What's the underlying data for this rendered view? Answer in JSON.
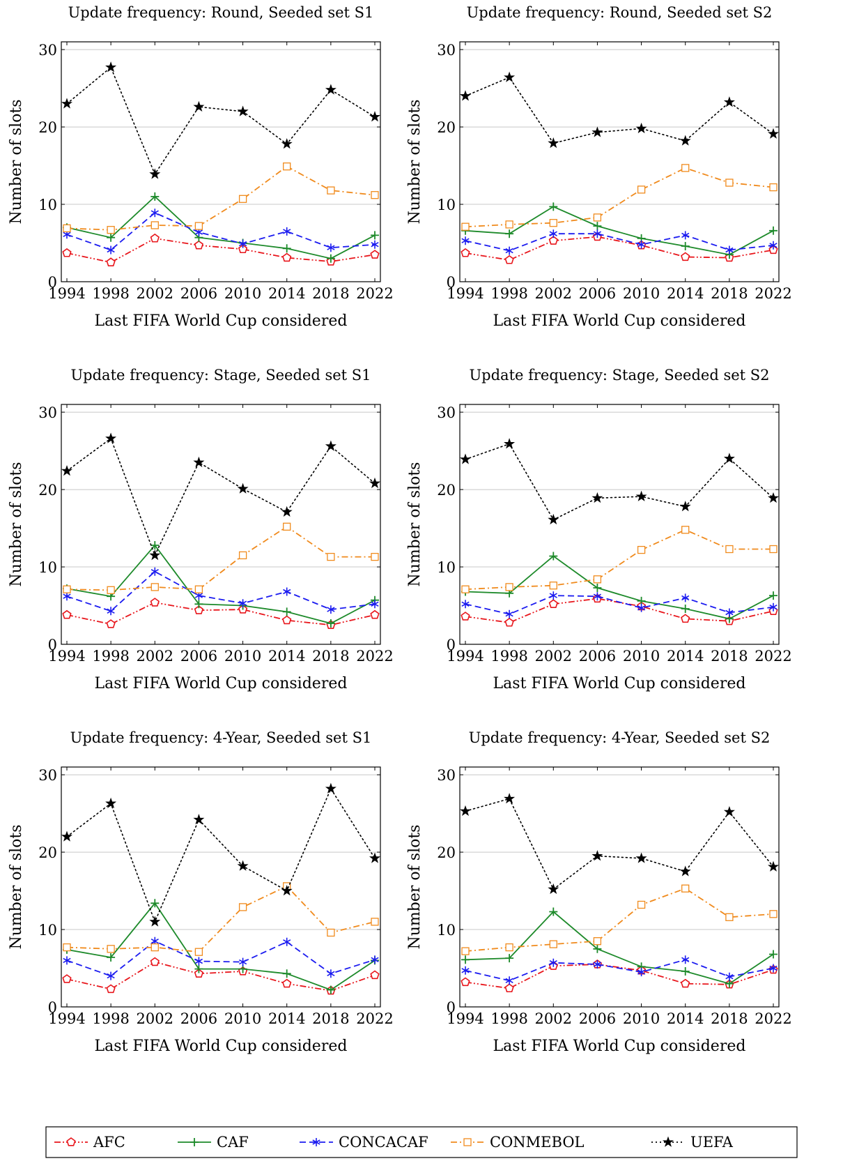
{
  "legend": [
    {
      "name": "AFC",
      "color": "#e8151b",
      "marker": "pentagon",
      "dash": "dashdotdot"
    },
    {
      "name": "CAF",
      "color": "#1d8a2a",
      "marker": "plus",
      "dash": "solid"
    },
    {
      "name": "CONCACAF",
      "color": "#1b1bf0",
      "marker": "asterisk",
      "dash": "dashed"
    },
    {
      "name": "CONMEBOL",
      "color": "#f08a1c",
      "marker": "square",
      "dash": "dashdot"
    },
    {
      "name": "UEFA",
      "color": "#000000",
      "marker": "star",
      "dash": "dotted"
    }
  ],
  "chart_data": [
    {
      "type": "line",
      "title": "Update frequency: Round, Seeded set S1",
      "xlabel": "Last FIFA World Cup considered",
      "ylabel": "Number of slots",
      "x": [
        1994,
        1998,
        2002,
        2006,
        2010,
        2014,
        2018,
        2022
      ],
      "ylim": [
        0,
        31
      ],
      "yticks": [
        0,
        10,
        20,
        30
      ],
      "grid": "horizontal",
      "series": [
        {
          "name": "AFC",
          "values": [
            3.7,
            2.5,
            5.6,
            4.7,
            4.2,
            3.1,
            2.6,
            3.5
          ]
        },
        {
          "name": "CAF",
          "values": [
            7.0,
            5.7,
            11.0,
            5.7,
            5.0,
            4.3,
            3.0,
            6.0
          ]
        },
        {
          "name": "CONCACAF",
          "values": [
            6.1,
            4.1,
            8.9,
            6.4,
            4.9,
            6.5,
            4.4,
            4.8
          ]
        },
        {
          "name": "CONMEBOL",
          "values": [
            6.9,
            6.7,
            7.3,
            7.2,
            10.7,
            14.9,
            11.8,
            11.2
          ]
        },
        {
          "name": "UEFA",
          "values": [
            23.0,
            27.7,
            13.9,
            22.6,
            22.0,
            17.8,
            24.8,
            21.3
          ]
        }
      ]
    },
    {
      "type": "line",
      "title": "Update frequency: Round, Seeded set S2",
      "xlabel": "Last FIFA World Cup considered",
      "ylabel": "Number of slots",
      "x": [
        1994,
        1998,
        2002,
        2006,
        2010,
        2014,
        2018,
        2022
      ],
      "ylim": [
        0,
        31
      ],
      "yticks": [
        0,
        10,
        20,
        30
      ],
      "grid": "horizontal",
      "series": [
        {
          "name": "AFC",
          "values": [
            3.7,
            2.8,
            5.3,
            5.8,
            4.7,
            3.2,
            3.1,
            4.1
          ]
        },
        {
          "name": "CAF",
          "values": [
            6.6,
            6.2,
            9.7,
            7.2,
            5.6,
            4.6,
            3.5,
            6.6
          ]
        },
        {
          "name": "CONCACAF",
          "values": [
            5.3,
            4.0,
            6.2,
            6.2,
            4.8,
            6.0,
            4.1,
            4.7
          ]
        },
        {
          "name": "CONMEBOL",
          "values": [
            7.1,
            7.4,
            7.6,
            8.3,
            11.9,
            14.7,
            12.8,
            12.2
          ]
        },
        {
          "name": "UEFA",
          "values": [
            24.0,
            26.4,
            17.9,
            19.3,
            19.8,
            18.2,
            23.2,
            19.1
          ]
        }
      ]
    },
    {
      "type": "line",
      "title": "Update frequency: Stage, Seeded set S1",
      "xlabel": "Last FIFA World Cup considered",
      "ylabel": "Number of slots",
      "x": [
        1994,
        1998,
        2002,
        2006,
        2010,
        2014,
        2018,
        2022
      ],
      "ylim": [
        0,
        31
      ],
      "yticks": [
        0,
        10,
        20,
        30
      ],
      "grid": "horizontal",
      "series": [
        {
          "name": "AFC",
          "values": [
            3.8,
            2.6,
            5.4,
            4.4,
            4.5,
            3.1,
            2.5,
            3.8
          ]
        },
        {
          "name": "CAF",
          "values": [
            7.2,
            6.2,
            12.8,
            5.2,
            5.0,
            4.2,
            2.7,
            5.7
          ]
        },
        {
          "name": "CONCACAF",
          "values": [
            6.2,
            4.3,
            9.4,
            6.3,
            5.3,
            6.8,
            4.5,
            5.2
          ]
        },
        {
          "name": "CONMEBOL",
          "values": [
            7.1,
            7.0,
            7.4,
            7.1,
            11.5,
            15.2,
            11.3,
            11.3
          ]
        },
        {
          "name": "UEFA",
          "values": [
            22.4,
            26.6,
            11.5,
            23.5,
            20.1,
            17.1,
            25.6,
            20.8
          ]
        }
      ]
    },
    {
      "type": "line",
      "title": "Update frequency: Stage, Seeded set S2",
      "xlabel": "Last FIFA World Cup considered",
      "ylabel": "Number of slots",
      "x": [
        1994,
        1998,
        2002,
        2006,
        2010,
        2014,
        2018,
        2022
      ],
      "ylim": [
        0,
        31
      ],
      "yticks": [
        0,
        10,
        20,
        30
      ],
      "grid": "horizontal",
      "series": [
        {
          "name": "AFC",
          "values": [
            3.6,
            2.8,
            5.2,
            5.9,
            4.9,
            3.3,
            3.0,
            4.3
          ]
        },
        {
          "name": "CAF",
          "values": [
            6.8,
            6.6,
            11.4,
            7.3,
            5.6,
            4.6,
            3.3,
            6.3
          ]
        },
        {
          "name": "CONCACAF",
          "values": [
            5.2,
            3.9,
            6.3,
            6.2,
            4.7,
            6.0,
            4.1,
            4.8
          ]
        },
        {
          "name": "CONMEBOL",
          "values": [
            7.1,
            7.4,
            7.6,
            8.4,
            12.2,
            14.8,
            12.3,
            12.3
          ]
        },
        {
          "name": "UEFA",
          "values": [
            23.9,
            25.9,
            16.1,
            18.9,
            19.1,
            17.8,
            24.0,
            18.9
          ]
        }
      ]
    },
    {
      "type": "line",
      "title": "Update frequency: 4-Year, Seeded set S1",
      "xlabel": "Last FIFA World Cup considered",
      "ylabel": "Number of slots",
      "x": [
        1994,
        1998,
        2002,
        2006,
        2010,
        2014,
        2018,
        2022
      ],
      "ylim": [
        0,
        31
      ],
      "yticks": [
        0,
        10,
        20,
        30
      ],
      "grid": "horizontal",
      "series": [
        {
          "name": "AFC",
          "values": [
            3.6,
            2.3,
            5.8,
            4.3,
            4.6,
            3.0,
            2.1,
            4.1
          ]
        },
        {
          "name": "CAF",
          "values": [
            7.4,
            6.4,
            13.4,
            4.9,
            4.9,
            4.3,
            2.2,
            6.0
          ]
        },
        {
          "name": "CONCACAF",
          "values": [
            6.0,
            4.0,
            8.5,
            5.9,
            5.8,
            8.4,
            4.3,
            6.1
          ]
        },
        {
          "name": "CONMEBOL",
          "values": [
            7.7,
            7.5,
            7.7,
            7.1,
            12.9,
            15.6,
            9.6,
            11.0
          ]
        },
        {
          "name": "UEFA",
          "values": [
            22.0,
            26.3,
            11.0,
            24.2,
            18.2,
            15.0,
            28.2,
            19.2
          ]
        }
      ]
    },
    {
      "type": "line",
      "title": "Update frequency: 4-Year, Seeded set S2",
      "xlabel": "Last FIFA World Cup considered",
      "ylabel": "Number of slots",
      "x": [
        1994,
        1998,
        2002,
        2006,
        2010,
        2014,
        2018,
        2022
      ],
      "ylim": [
        0,
        31
      ],
      "yticks": [
        0,
        10,
        20,
        30
      ],
      "grid": "horizontal",
      "series": [
        {
          "name": "AFC",
          "values": [
            3.2,
            2.4,
            5.3,
            5.5,
            4.7,
            3.0,
            2.9,
            4.8
          ]
        },
        {
          "name": "CAF",
          "values": [
            6.1,
            6.3,
            12.3,
            7.5,
            5.2,
            4.6,
            3.0,
            6.8
          ]
        },
        {
          "name": "CONCACAF",
          "values": [
            4.7,
            3.4,
            5.7,
            5.5,
            4.5,
            6.1,
            3.9,
            5.0
          ]
        },
        {
          "name": "CONMEBOL",
          "values": [
            7.2,
            7.7,
            8.1,
            8.5,
            13.2,
            15.3,
            11.6,
            12.0
          ]
        },
        {
          "name": "UEFA",
          "values": [
            25.3,
            26.9,
            15.2,
            19.5,
            19.2,
            17.5,
            25.2,
            18.1
          ]
        }
      ]
    }
  ]
}
